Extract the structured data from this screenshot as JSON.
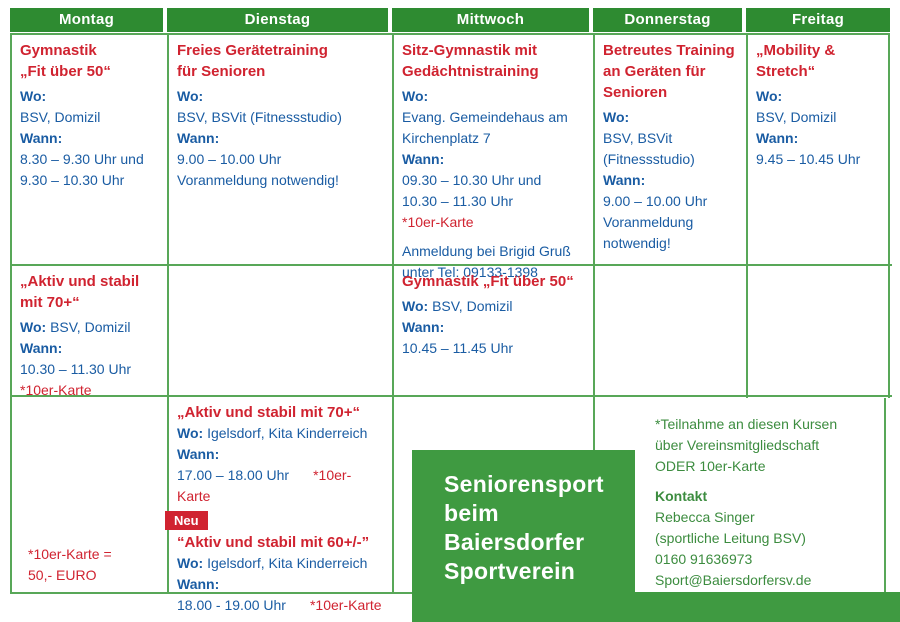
{
  "colors": {
    "green_header": "#2e8b31",
    "green_box": "#3f9a41",
    "green_border": "#58a758",
    "green_text": "#3c8c3f",
    "red": "#d02330",
    "blue": "#1a5ca3"
  },
  "header": {
    "mon": "Montag",
    "tue": "Dienstag",
    "wed": "Mittwoch",
    "thu": "Donnerstag",
    "fri": "Freitag"
  },
  "r1": {
    "mon": {
      "t1": "Gymnastik",
      "t2": "„Fit über 50“",
      "wo_l": "Wo:",
      "wo": "BSV, Domizil",
      "wann_l": "Wann:",
      "z1": "8.30 – 9.30 Uhr und",
      "z2": "9.30 – 10.30 Uhr"
    },
    "tue": {
      "t1": "Freies Gerätetraining",
      "t2": "für Senioren",
      "wo_l": "Wo:",
      "wo": "BSV, BSVit (Fitnessstudio)",
      "wann_l": "Wann:",
      "z1": "9.00 – 10.00 Uhr",
      "z2": "Voranmeldung notwendig!"
    },
    "wed": {
      "t1": "Sitz-Gymnastik mit",
      "t2": "Gedächtnistraining",
      "wo_l": "Wo:",
      "wo1": "Evang. Gemeindehaus am",
      "wo2": "Kirchenplatz 7",
      "wann_l": "Wann:",
      "z1": "09.30 – 10.30 Uhr und",
      "z2": "10.30 – 11.30 Uhr",
      "karte": "*10er-Karte",
      "a1": "Anmeldung bei Brigid Gruß",
      "a2": "unter Tel: 09133-1398"
    },
    "thu": {
      "t1": "Betreutes Training",
      "t2": "an Geräten für",
      "t3": "Senioren",
      "wo_l": "Wo:",
      "wo1": "BSV, BSVit",
      "wo2": "(Fitnessstudio)",
      "wann_l": "Wann:",
      "z1": "9.00 – 10.00 Uhr",
      "z2": "Voranmeldung",
      "z3": "notwendig!"
    },
    "fri": {
      "t1": "„Mobility &",
      "t2": "Stretch“",
      "wo_l": "Wo:",
      "wo": "BSV, Domizil",
      "wann_l": "Wann:",
      "z1": "9.45 – 10.45 Uhr"
    }
  },
  "r2": {
    "mon": {
      "t1": "„Aktiv und stabil",
      "t2": "mit 70+“",
      "wo_l": "Wo:",
      "wo": "BSV, Domizil",
      "wann_l": "Wann:",
      "z1": "10.30 – 11.30 Uhr",
      "karte": "*10er-Karte"
    },
    "wed": {
      "t1": "Gymnastik „Fit über 50“",
      "wo_l": "Wo:",
      "wo": "BSV, Domizil",
      "wann_l": "Wann:",
      "z1": "10.45 – 11.45 Uhr"
    }
  },
  "r3": {
    "mon": {
      "f1": "*10er-Karte =",
      "f2": "50,- EURO"
    },
    "tue": {
      "e1": {
        "t": "„Aktiv und stabil mit 70+“",
        "wo_l": "Wo:",
        "wo": "Igelsdorf, Kita Kinderreich",
        "wann_l": "Wann:",
        "z": "17.00 – 18.00 Uhr",
        "karte": "*10er-Karte"
      },
      "badge": "Neu",
      "e2": {
        "t": "“Aktiv und stabil mit 60+/-”",
        "wo_l": "Wo:",
        "wo": "Igelsdorf, Kita Kinderreich",
        "wann_l": "Wann:",
        "z": "18.00 - 19.00 Uhr",
        "karte": "*10er-Karte"
      }
    }
  },
  "title_box": {
    "line1": "Seniorensport",
    "line2": "beim",
    "line3": "Baiersdorfer",
    "line4": "Sportverein"
  },
  "info": {
    "l1": "*Teilnahme an diesen Kursen",
    "l2": "über Vereinsmitgliedschaft",
    "l3": "ODER 10er-Karte",
    "kontakt": "Kontakt",
    "name": "Rebecca Singer",
    "role": "(sportliche Leitung BSV)",
    "phone": "0160 91636973",
    "email": "Sport@Baiersdorfersv.de"
  }
}
